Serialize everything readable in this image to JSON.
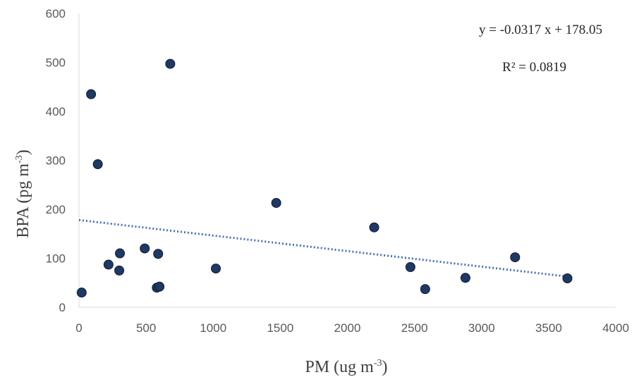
{
  "chart_data": {
    "type": "scatter",
    "xlabel": "PM (ug m",
    "xlabel_sup": "-3",
    "xlabel_end": ")",
    "ylabel": "BPA (pg m",
    "ylabel_sup": "-3",
    "ylabel_end": ")",
    "xlim": [
      0,
      4000
    ],
    "ylim": [
      0,
      600
    ],
    "x_ticks": [
      0,
      500,
      1000,
      1500,
      2000,
      2500,
      3000,
      3500,
      4000
    ],
    "y_ticks": [
      0,
      100,
      200,
      300,
      400,
      500,
      600
    ],
    "grid": false,
    "marker_color": "#1f3864",
    "trendline_color": "#4472c4",
    "trendline": {
      "type": "linear",
      "slope": -0.0317,
      "intercept": 178.05,
      "equation_label": "y = -0.0317 x + 178.05",
      "r2_label": "R² = 0.0819"
    },
    "points": [
      {
        "x": 20,
        "y": 30
      },
      {
        "x": 90,
        "y": 435
      },
      {
        "x": 140,
        "y": 292
      },
      {
        "x": 220,
        "y": 87
      },
      {
        "x": 300,
        "y": 75
      },
      {
        "x": 305,
        "y": 110
      },
      {
        "x": 490,
        "y": 120
      },
      {
        "x": 580,
        "y": 40
      },
      {
        "x": 590,
        "y": 109
      },
      {
        "x": 600,
        "y": 42
      },
      {
        "x": 680,
        "y": 497
      },
      {
        "x": 1020,
        "y": 79
      },
      {
        "x": 1470,
        "y": 213
      },
      {
        "x": 2200,
        "y": 163
      },
      {
        "x": 2470,
        "y": 82
      },
      {
        "x": 2580,
        "y": 37
      },
      {
        "x": 2880,
        "y": 60
      },
      {
        "x": 3250,
        "y": 102
      },
      {
        "x": 3640,
        "y": 59
      }
    ]
  }
}
